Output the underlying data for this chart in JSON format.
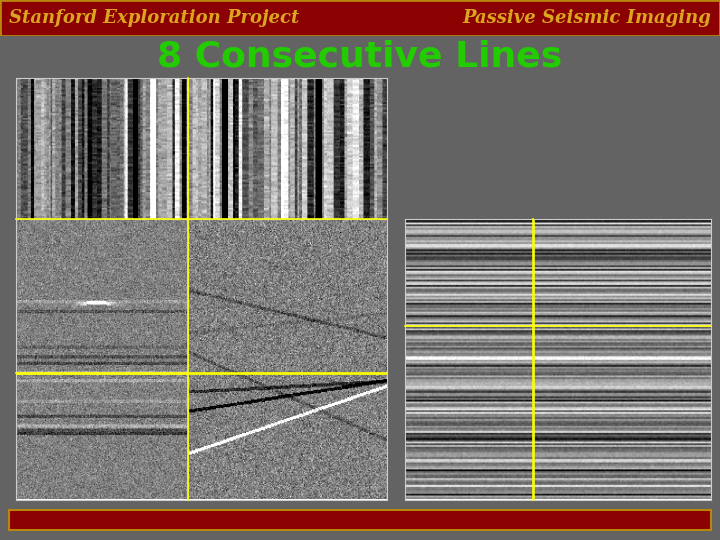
{
  "bg_color": "#636363",
  "header_bg": "#8B0000",
  "header_border": "#B8860B",
  "header_text_left": "Stanford Exploration Project",
  "header_text_right": "Passive Seismic Imaging",
  "header_text_color": "#DAA520",
  "title_text": "8 Consecutive Lines",
  "title_color": "#22CC00",
  "title_fontsize": 26,
  "footer_bg": "#8B0000",
  "footer_border": "#B8860B",
  "yellow_line_color": "#FFFF00",
  "panel_border_color": "#CCCCCC",
  "header_fontsize": 13
}
